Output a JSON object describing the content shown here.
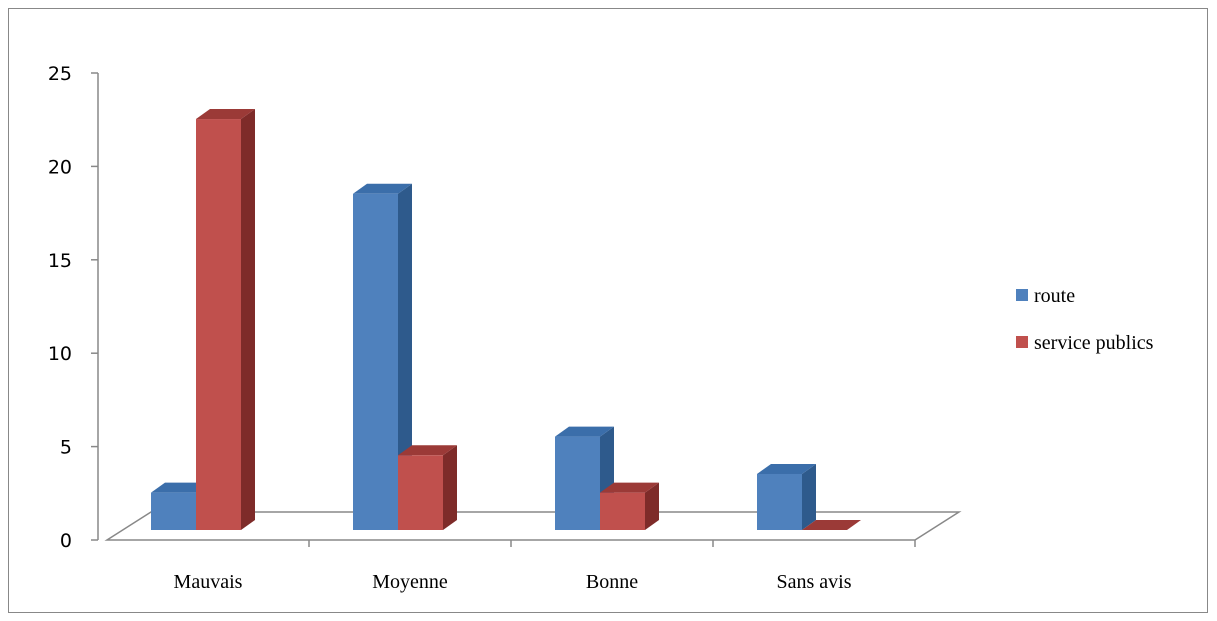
{
  "chart_data": {
    "type": "bar",
    "title": "",
    "xlabel": "",
    "ylabel": "",
    "categories": [
      "Mauvais",
      "Moyenne",
      "Bonne",
      "Sans avis"
    ],
    "series": [
      {
        "name": "route",
        "values": [
          2,
          18,
          5,
          3
        ],
        "color": "#4F81BD",
        "side_color": "#2E5A8C",
        "top_color": "#3B6EAA"
      },
      {
        "name": "service publics",
        "values": [
          22,
          4,
          2,
          0
        ],
        "color": "#C0504D",
        "side_color": "#7E2B29",
        "top_color": "#9B3A37"
      }
    ],
    "ylim": [
      0,
      25
    ],
    "yticks": [
      "0",
      "5",
      "10",
      "15",
      "20",
      "25"
    ],
    "grid": false,
    "legend": "right",
    "style": "3d-clustered-column"
  }
}
